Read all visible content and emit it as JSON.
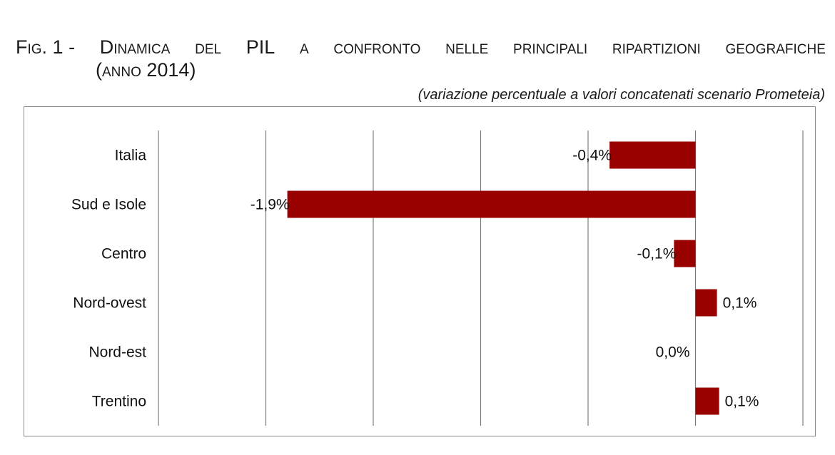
{
  "title": {
    "line1_words": [
      "Fig. 1 -",
      "Dinamica",
      "del",
      "PIL",
      "a",
      "confronto",
      "nelle",
      "principali",
      "ripartizioni",
      "geografiche"
    ],
    "line2": "(anno 2014)"
  },
  "subtitle": "(variazione percentuale a valori concatenati scenario Prometeia)",
  "chart_data": {
    "type": "bar",
    "orientation": "horizontal",
    "categories": [
      "Italia",
      "Sud e Isole",
      "Centro",
      "Nord-ovest",
      "Nord-est",
      "Trentino"
    ],
    "values": [
      -0.4,
      -1.9,
      -0.1,
      0.1,
      0.0,
      0.11
    ],
    "data_labels": [
      "-0,4%",
      "-1,9%",
      "-0,1%",
      "0,1%",
      "0,0%",
      "0,1%"
    ],
    "xlim": [
      -2.5,
      0.5
    ],
    "gridlines": [
      -2.5,
      -2.0,
      -1.5,
      -1.0,
      -0.5,
      0.0,
      0.5
    ],
    "bar_color": "#990000",
    "grid": true
  }
}
